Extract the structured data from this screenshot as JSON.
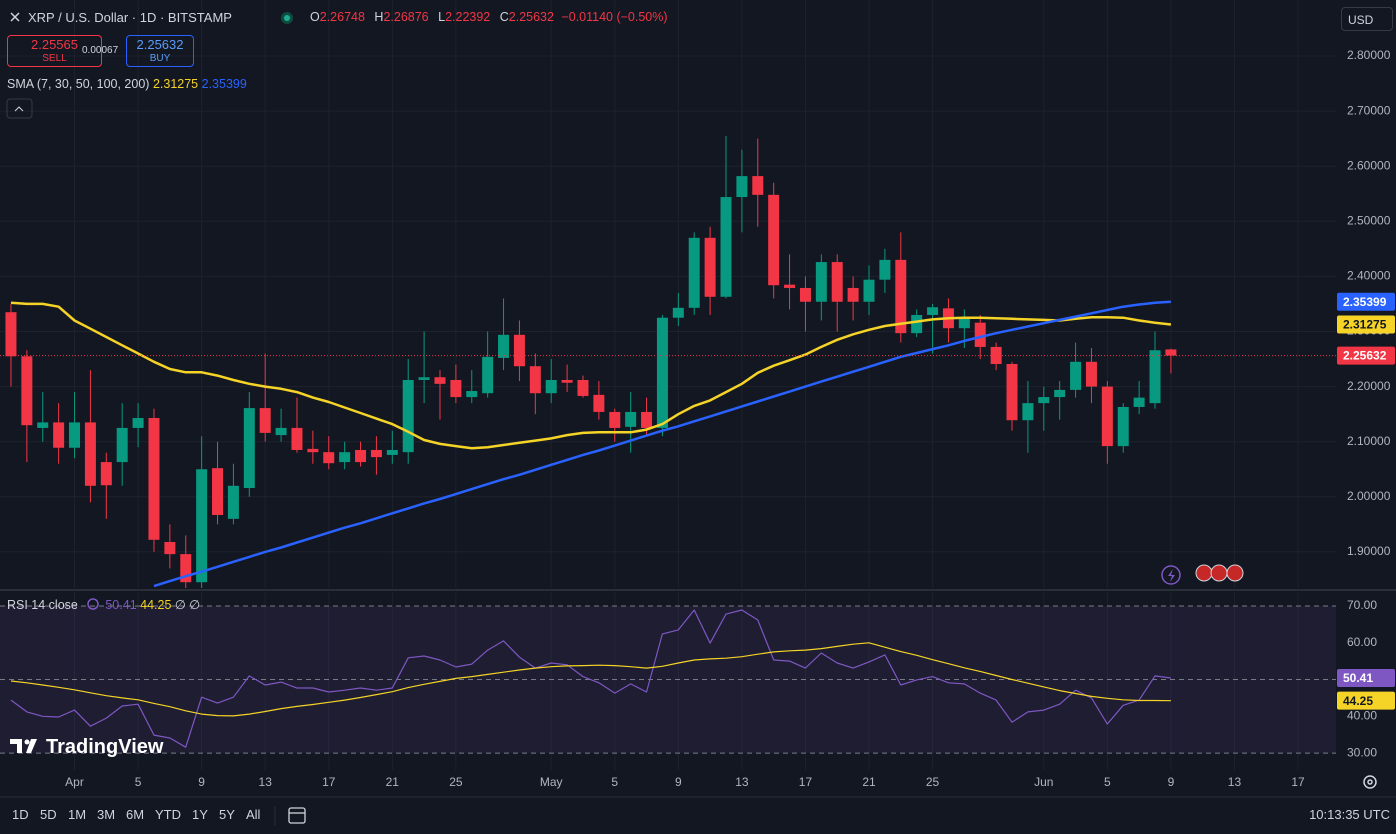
{
  "header": {
    "symbol": "XRP / U.S. Dollar · 1D · BITSTAMP",
    "ohlc_keys": [
      "O",
      "H",
      "L",
      "C"
    ],
    "change": "−0.01140 (−0.50%)",
    "sell": {
      "price": "2.25565",
      "label": "SELL"
    },
    "spread": "0.00067",
    "buy": {
      "price": "2.25632",
      "label": "BUY"
    },
    "currency": "USD"
  },
  "chart_data": [
    {
      "type": "candlestick",
      "legend": "SMA (7, 30, 50, 100, 200)",
      "up_color": "#089981",
      "down_color": "#f23645",
      "grid": true,
      "open": [
        2.335,
        2.255,
        2.125,
        2.135,
        2.089,
        2.135,
        2.063,
        2.063,
        2.125,
        2.143,
        1.918,
        1.896,
        1.845,
        2.052,
        1.96,
        2.016,
        2.161,
        2.112,
        2.125,
        2.087,
        2.081,
        2.063,
        2.085,
        2.085,
        2.076,
        2.081,
        2.212,
        2.217,
        2.212,
        2.181,
        2.188,
        2.252,
        2.294,
        2.237,
        2.188,
        2.212,
        2.212,
        2.185,
        2.154,
        2.127,
        2.154,
        2.125,
        2.325,
        2.343,
        2.47,
        2.363,
        2.544,
        2.582,
        2.548,
        2.385,
        2.379,
        2.354,
        2.426,
        2.379,
        2.354,
        2.394,
        2.43,
        2.297,
        2.33,
        2.342,
        2.306,
        2.316,
        2.272,
        2.241,
        2.139,
        2.17,
        2.181,
        2.194,
        2.245,
        2.2,
        2.092,
        2.163,
        2.17,
        2.26748
      ],
      "high": [
        2.35,
        2.266,
        2.19,
        2.17,
        2.19,
        2.23,
        2.08,
        2.17,
        2.17,
        2.16,
        1.95,
        1.93,
        2.11,
        2.1,
        2.06,
        2.19,
        2.26,
        2.16,
        2.18,
        2.12,
        2.11,
        2.1,
        2.1,
        2.11,
        2.12,
        2.25,
        2.3,
        2.23,
        2.24,
        2.23,
        2.3,
        2.36,
        2.32,
        2.26,
        2.25,
        2.24,
        2.22,
        2.21,
        2.16,
        2.19,
        2.18,
        2.33,
        2.37,
        2.48,
        2.49,
        2.655,
        2.63,
        2.65,
        2.57,
        2.44,
        2.4,
        2.44,
        2.44,
        2.4,
        2.42,
        2.45,
        2.48,
        2.34,
        2.35,
        2.36,
        2.34,
        2.33,
        2.28,
        2.245,
        2.21,
        2.2,
        2.21,
        2.28,
        2.27,
        2.21,
        2.17,
        2.21,
        2.3,
        2.26876
      ],
      "low": [
        2.2,
        2.063,
        2.1,
        2.06,
        2.07,
        1.99,
        1.96,
        2.02,
        2.09,
        1.9,
        1.87,
        1.83,
        1.83,
        1.95,
        1.95,
        2.0,
        2.1,
        2.1,
        2.08,
        2.06,
        2.05,
        2.05,
        2.055,
        2.04,
        2.06,
        2.06,
        2.17,
        2.14,
        2.17,
        2.17,
        2.18,
        2.23,
        2.21,
        2.15,
        2.17,
        2.19,
        2.18,
        2.14,
        2.1,
        2.08,
        2.11,
        2.11,
        2.31,
        2.33,
        2.33,
        2.36,
        2.48,
        2.49,
        2.36,
        2.34,
        2.3,
        2.32,
        2.3,
        2.32,
        2.33,
        2.37,
        2.28,
        2.29,
        2.26,
        2.28,
        2.27,
        2.25,
        2.23,
        2.12,
        2.08,
        2.12,
        2.14,
        2.18,
        2.17,
        2.06,
        2.08,
        2.15,
        2.16,
        2.22392
      ],
      "close": [
        2.255,
        2.13,
        2.135,
        2.089,
        2.135,
        2.02,
        2.021,
        2.125,
        2.143,
        1.922,
        1.896,
        1.845,
        2.05,
        1.967,
        2.02,
        2.161,
        2.116,
        2.125,
        2.085,
        2.081,
        2.061,
        2.081,
        2.063,
        2.072,
        2.085,
        2.212,
        2.217,
        2.205,
        2.181,
        2.192,
        2.254,
        2.294,
        2.237,
        2.188,
        2.212,
        2.207,
        2.183,
        2.154,
        2.125,
        2.154,
        2.125,
        2.325,
        2.343,
        2.47,
        2.363,
        2.544,
        2.582,
        2.548,
        2.384,
        2.379,
        2.354,
        2.426,
        2.354,
        2.354,
        2.394,
        2.43,
        2.297,
        2.33,
        2.344,
        2.306,
        2.325,
        2.272,
        2.241,
        2.139,
        2.17,
        2.181,
        2.194,
        2.245,
        2.2,
        2.092,
        2.163,
        2.18,
        2.266,
        2.25632
      ],
      "series": [
        {
          "color": "#f5d327",
          "values": [
            2.352,
            2.35,
            2.35,
            2.345,
            2.32,
            2.305,
            2.29,
            2.275,
            2.26,
            2.245,
            2.232,
            2.226,
            2.226,
            2.22,
            2.212,
            2.205,
            2.2,
            2.196,
            2.19,
            2.18,
            2.172,
            2.162,
            2.152,
            2.142,
            2.132,
            2.118,
            2.103,
            2.096,
            2.092,
            2.088,
            2.09,
            2.094,
            2.098,
            2.102,
            2.106,
            2.112,
            2.116,
            2.117,
            2.117,
            2.117,
            2.122,
            2.132,
            2.15,
            2.165,
            2.175,
            2.19,
            2.205,
            2.225,
            2.238,
            2.248,
            2.258,
            2.272,
            2.285,
            2.295,
            2.303,
            2.31,
            2.314,
            2.318,
            2.322,
            2.324,
            2.325,
            2.325,
            2.324,
            2.323,
            2.322,
            2.321,
            2.32,
            2.323,
            2.326,
            2.326,
            2.325,
            2.32,
            2.316,
            2.31275
          ]
        },
        {
          "color": "#2962ff",
          "values": [
            null,
            null,
            null,
            null,
            null,
            null,
            null,
            null,
            null,
            1.838,
            1.847,
            1.856,
            1.864,
            1.873,
            1.882,
            1.891,
            1.9,
            1.908,
            1.917,
            1.926,
            1.935,
            1.944,
            1.952,
            1.961,
            1.97,
            1.979,
            1.988,
            1.996,
            2.005,
            2.014,
            2.023,
            2.032,
            2.04,
            2.049,
            2.058,
            2.067,
            2.076,
            2.084,
            2.093,
            2.102,
            2.111,
            2.12,
            2.128,
            2.137,
            2.146,
            2.155,
            2.164,
            2.173,
            2.182,
            2.191,
            2.2,
            2.209,
            2.218,
            2.227,
            2.236,
            2.245,
            2.254,
            2.261,
            2.268,
            2.275,
            2.283,
            2.29,
            2.297,
            2.303,
            2.309,
            2.315,
            2.321,
            2.327,
            2.333,
            2.339,
            2.345,
            2.349,
            2.352,
            2.35399
          ]
        }
      ],
      "xlim": [
        -0.69,
        83.39
      ],
      "ylim": [
        1.8345,
        2.9016
      ],
      "yticks": [
        {
          "value": 2.8,
          "label": "2.80000"
        },
        {
          "value": 2.7,
          "label": "2.70000"
        },
        {
          "value": 2.6,
          "label": "2.60000"
        },
        {
          "value": 2.5,
          "label": "2.50000"
        },
        {
          "value": 2.4,
          "label": "2.40000"
        },
        {
          "value": 2.3,
          "label": "2.30000"
        },
        {
          "value": 2.2,
          "label": "2.20000"
        },
        {
          "value": 2.1,
          "label": "2.10000"
        },
        {
          "value": 2.0,
          "label": "2.00000"
        },
        {
          "value": 1.9,
          "label": "1.90000"
        }
      ],
      "xticks": [
        {
          "value": 4,
          "label": "Apr"
        },
        {
          "value": 8,
          "label": "5"
        },
        {
          "value": 12,
          "label": "9"
        },
        {
          "value": 16,
          "label": "13"
        },
        {
          "value": 20,
          "label": "17"
        },
        {
          "value": 24,
          "label": "21"
        },
        {
          "value": 28,
          "label": "25"
        },
        {
          "value": 34,
          "label": "May"
        },
        {
          "value": 38,
          "label": "5"
        },
        {
          "value": 42,
          "label": "9"
        },
        {
          "value": 46,
          "label": "13"
        },
        {
          "value": 50,
          "label": "17"
        },
        {
          "value": 54,
          "label": "21"
        },
        {
          "value": 58,
          "label": "25"
        },
        {
          "value": 65,
          "label": "Jun"
        },
        {
          "value": 69,
          "label": "5"
        },
        {
          "value": 73,
          "label": "9"
        },
        {
          "value": 77,
          "label": "13"
        },
        {
          "value": 81,
          "label": "17"
        }
      ]
    },
    {
      "type": "line",
      "title": "RSI 14 close",
      "note": "∅ ∅",
      "grid": false,
      "band_color": "#7e57c2",
      "series": [
        {
          "color": "#7e57c2",
          "values": [
            44.4,
            41.2,
            40,
            39.8,
            41.7,
            37.3,
            39.5,
            42.8,
            43.3,
            34.9,
            34.1,
            31.6,
            45.2,
            43.6,
            45.2,
            51,
            48.5,
            49.3,
            47.7,
            47.7,
            46.6,
            47.1,
            47.7,
            47.1,
            47.7,
            55.9,
            56.4,
            55.3,
            53.4,
            54.2,
            58,
            60.5,
            56.1,
            53.1,
            54.5,
            54,
            50.8,
            49.1,
            46.3,
            48.8,
            46.6,
            62.4,
            63.5,
            68.9,
            59.9,
            67.8,
            68.9,
            66.2,
            55.3,
            55,
            53.1,
            57.2,
            54.5,
            53.1,
            54.8,
            56.7,
            48.5,
            49.9,
            50.8,
            49.1,
            48.8,
            46.3,
            44.4,
            38.4,
            41.2,
            41.7,
            43.3,
            47.1,
            45,
            37.9,
            43,
            44.4,
            51,
            50.41
          ]
        },
        {
          "color": "#f5d327",
          "values": [
            49.6,
            49.1,
            48.5,
            47.9,
            47.2,
            46.4,
            45.6,
            45,
            44.5,
            43.5,
            42.6,
            41.5,
            40.6,
            40.2,
            40.1,
            40.6,
            41.3,
            42.1,
            42.7,
            43.2,
            43.8,
            44.4,
            45.1,
            45.9,
            46.7,
            47.8,
            48.7,
            49.5,
            50.3,
            50.8,
            51.4,
            52,
            52.6,
            53.1,
            53.5,
            53.7,
            53.8,
            53.9,
            53.8,
            53.5,
            53.1,
            53.6,
            54.5,
            55.3,
            55.6,
            55.8,
            56.2,
            56.9,
            57.5,
            57.8,
            58,
            58.4,
            59,
            59.6,
            60,
            58.8,
            57.6,
            56.6,
            55.4,
            54.3,
            53.2,
            52.2,
            51.1,
            50,
            49,
            48,
            47,
            46.2,
            45.4,
            44.9,
            44.5,
            44.3,
            44.3,
            44.25
          ]
        }
      ],
      "xlim": [
        -0.69,
        83.39
      ],
      "ylim": [
        25.4,
        73.8
      ],
      "levels": [
        70,
        50,
        30
      ],
      "yticks": [
        {
          "value": 70,
          "label": "70.00"
        },
        {
          "value": 60,
          "label": "60.00"
        },
        {
          "value": 50,
          "label": "50.00"
        },
        {
          "value": 40,
          "label": "40.00"
        },
        {
          "value": 30,
          "label": "30.00"
        }
      ]
    }
  ],
  "logo": "TradingView",
  "toolbar": {
    "ranges": [
      "1D",
      "5D",
      "1M",
      "3M",
      "6M",
      "YTD",
      "1Y",
      "5Y",
      "All"
    ],
    "time": "10:13:35 UTC"
  }
}
